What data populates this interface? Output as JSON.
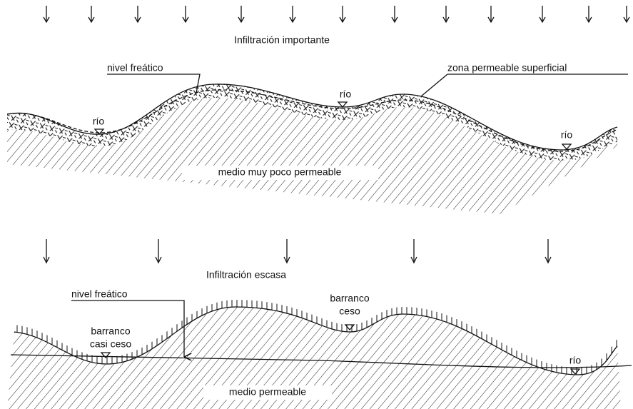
{
  "top_panel": {
    "infiltration": "Infiltración importante",
    "water_table": "nivel freático",
    "permeable_zone": "zona permeable superficial",
    "rivers": [
      "río",
      "río",
      "río"
    ],
    "medium": "medio muy poco permeable"
  },
  "bottom_panel": {
    "infiltration": "Infiltración escasa",
    "water_table": "nivel freático",
    "dry_ravine": [
      "barranco",
      "ceso"
    ],
    "almost_dry_ravine": [
      "barranco",
      "casi ceso"
    ],
    "river": "río",
    "medium": "medio permeable"
  }
}
